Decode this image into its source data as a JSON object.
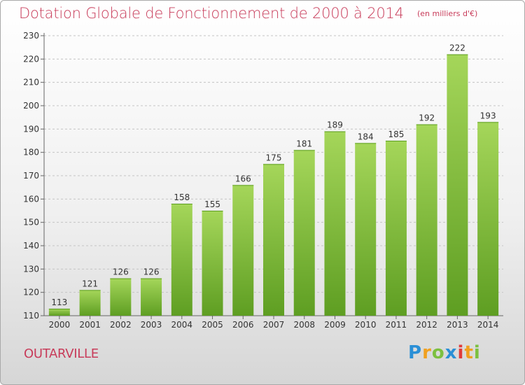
{
  "chart_data": {
    "type": "bar",
    "title": "Dotation Globale de Fonctionnement de 2000 à 2014",
    "subtitle": "(en milliers d'€)",
    "categories": [
      "2000",
      "2001",
      "2002",
      "2003",
      "2004",
      "2005",
      "2006",
      "2007",
      "2008",
      "2009",
      "2010",
      "2011",
      "2012",
      "2013",
      "2014"
    ],
    "values": [
      113,
      121,
      126,
      126,
      158,
      155,
      166,
      175,
      181,
      189,
      184,
      185,
      192,
      222,
      193
    ],
    "ylim": [
      110,
      230
    ],
    "yticks": [
      110,
      120,
      130,
      140,
      150,
      160,
      170,
      180,
      190,
      200,
      210,
      220,
      230
    ],
    "grid": "horizontal dashed",
    "bar_color": "#7cc040",
    "bar_color_light": "#a5d65a",
    "bar_color_dark": "#5e9e22"
  },
  "commune": "OUTARVILLE",
  "brand": {
    "letters": [
      "P",
      "r",
      "o",
      "x",
      "i",
      "t",
      "i"
    ],
    "colors": [
      "#2a8fd6",
      "#f0a020",
      "#7cc040",
      "#2a8fd6",
      "#e03c3c",
      "#f0a020",
      "#7cc040"
    ]
  },
  "colors": {
    "accent": "#c83c5a"
  }
}
